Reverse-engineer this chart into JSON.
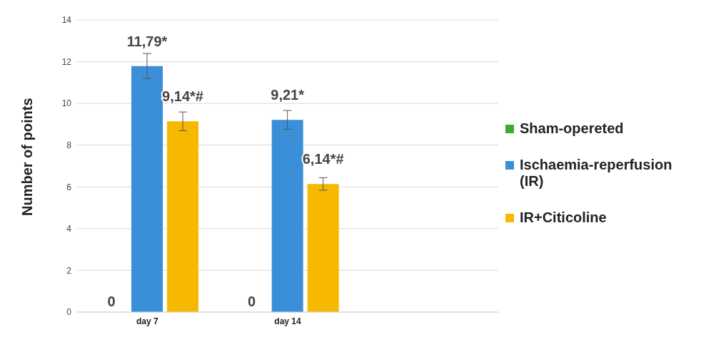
{
  "chart_data": {
    "type": "bar",
    "ylabel": "Number of points",
    "categories": [
      "day 7",
      "day 14",
      null
    ],
    "series": [
      {
        "name": "Sham-opereted",
        "color": "#3daa35",
        "values": [
          0,
          0,
          null
        ],
        "value_labels": [
          "0",
          "0",
          null
        ]
      },
      {
        "name": "Ischaemia-reperfusion (IR)",
        "color": "#3a8fd8",
        "values": [
          11.79,
          9.21,
          null
        ],
        "errors": [
          0.6,
          0.45,
          null
        ],
        "value_labels": [
          "11,79*",
          "9,21*",
          null
        ]
      },
      {
        "name": "IR+Citicoline",
        "color": "#f7b900",
        "values": [
          9.14,
          6.14,
          null
        ],
        "errors": [
          0.45,
          0.3,
          null
        ],
        "value_labels": [
          "9,14*#",
          "6,14*#",
          null
        ]
      }
    ],
    "ylim": [
      0,
      14
    ],
    "yticks": [
      0,
      2,
      4,
      6,
      8,
      10,
      12,
      14
    ],
    "grid": "y",
    "legend": "right"
  }
}
